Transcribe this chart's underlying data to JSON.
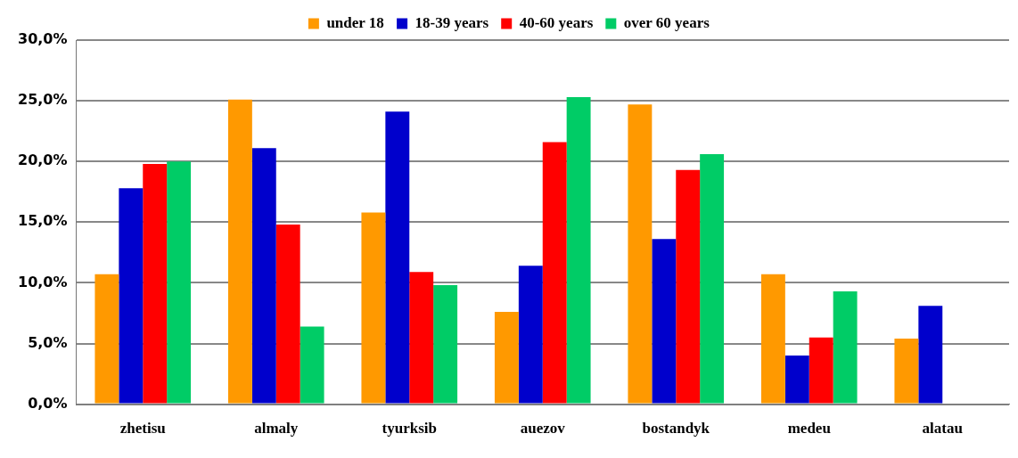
{
  "chart_data": {
    "type": "bar",
    "categories": [
      "zhetisu",
      "almaly",
      "tyurksib",
      "auezov",
      "bostandyk",
      "medeu",
      "alatau"
    ],
    "series": [
      {
        "name": "under 18",
        "color": "#ff9900",
        "values": [
          10.7,
          25.1,
          15.8,
          7.6,
          24.7,
          10.7,
          5.4
        ]
      },
      {
        "name": "18-39 years",
        "color": "#0000cc",
        "values": [
          17.8,
          21.1,
          24.1,
          11.4,
          13.6,
          4.0,
          8.1
        ]
      },
      {
        "name": "40-60 years",
        "color": "#ff0000",
        "values": [
          19.8,
          14.8,
          10.9,
          21.6,
          19.3,
          5.5,
          null
        ]
      },
      {
        "name": "over 60 years",
        "color": "#00cc66",
        "values": [
          20.0,
          6.4,
          9.8,
          25.3,
          20.6,
          9.3,
          null
        ]
      }
    ],
    "ylim": [
      0,
      30
    ],
    "yticks": [
      {
        "value": 0,
        "label": "0,0%"
      },
      {
        "value": 5,
        "label": "5,0%"
      },
      {
        "value": 10,
        "label": "10,0%"
      },
      {
        "value": 15,
        "label": "15,0%"
      },
      {
        "value": 20,
        "label": "20,0%"
      },
      {
        "value": 25,
        "label": "25,0%"
      },
      {
        "value": 30,
        "label": "30,0%"
      }
    ],
    "grid": "y",
    "legend": "top"
  }
}
